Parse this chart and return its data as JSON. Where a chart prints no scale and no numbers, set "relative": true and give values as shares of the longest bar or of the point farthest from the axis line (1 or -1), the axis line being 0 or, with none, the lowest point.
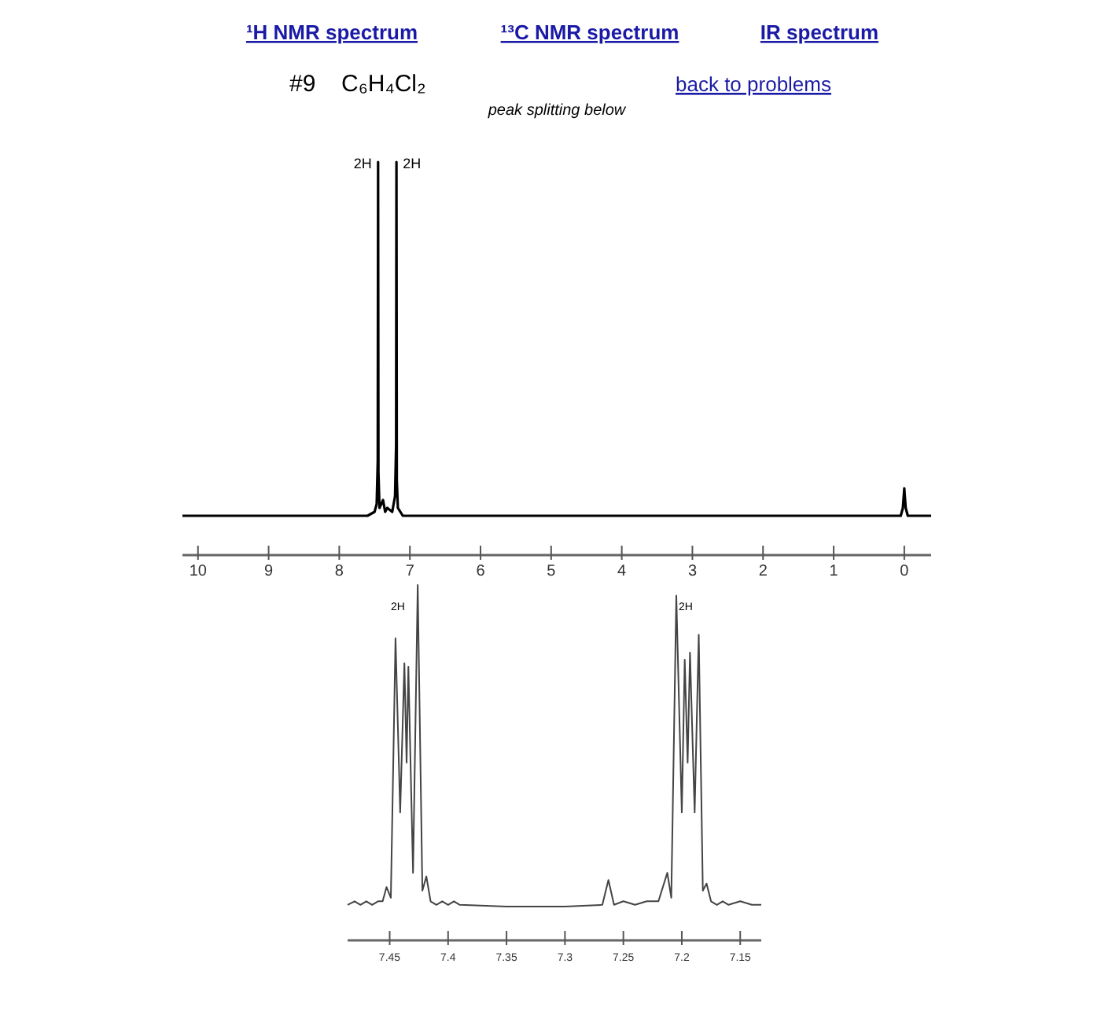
{
  "chart_data": [
    {
      "type": "line",
      "relative": true,
      "title": "#9",
      "subtitle": "C₆H₄Cl₂",
      "annotations": [
        "¹H NMR spectrum",
        "¹³C NMR spectrum",
        "IR spectrum",
        "back to problems",
        "peak splitting below",
        {
          "text": "2H",
          "x": 7.45,
          "y": 1
        },
        {
          "text": "2H",
          "x": 7.19,
          "y": 1
        }
      ],
      "xlim": [
        10.22,
        -0.38
      ],
      "xticks": [
        10,
        9,
        8,
        7,
        6,
        5,
        4,
        3,
        2,
        1,
        0
      ],
      "series": [
        {
          "color": "#000000",
          "x": [
            10.22,
            7.6,
            7.5,
            7.47,
            7.455,
            7.45,
            7.445,
            7.43,
            7.38,
            7.35,
            7.32,
            7.25,
            7.21,
            7.195,
            7.19,
            7.185,
            7.17,
            7.1,
            0.05,
            0.02,
            0,
            -0.02,
            -0.05,
            -0.38
          ],
          "values": [
            0.1,
            0.1,
            0.11,
            0.13,
            0.24,
            1,
            0.21,
            0.12,
            0.14,
            0.11,
            0.12,
            0.11,
            0.15,
            0.28,
            1,
            0.19,
            0.12,
            0.1,
            0.1,
            0.12,
            0.17,
            0.12,
            0.1,
            0.1
          ]
        }
      ]
    },
    {
      "type": "line",
      "relative": true,
      "annotations": [
        "2H",
        "2H"
      ],
      "xlim": [
        7.486,
        7.132
      ],
      "xticks": [
        7.45,
        7.4,
        7.35,
        7.3,
        7.25,
        7.2,
        7.15
      ],
      "series": [
        {
          "color": "#444444",
          "x": [
            7.486,
            7.48,
            7.475,
            7.47,
            7.465,
            7.46,
            7.456,
            7.4527,
            7.449,
            7.445,
            7.441,
            7.4374,
            7.4355,
            7.434,
            7.43,
            7.426,
            7.422,
            7.4186,
            7.415,
            7.41,
            7.405,
            7.4,
            7.395,
            7.39,
            7.35,
            7.3,
            7.268,
            7.2628,
            7.258,
            7.25,
            7.24,
            7.23,
            7.22,
            7.2124,
            7.209,
            7.2047,
            7.2,
            7.1975,
            7.195,
            7.193,
            7.189,
            7.1855,
            7.182,
            7.1788,
            7.175,
            7.17,
            7.165,
            7.16,
            7.15,
            7.14,
            7.132
          ],
          "values": [
            0.1,
            0.11,
            0.1,
            0.11,
            0.1,
            0.11,
            0.11,
            0.15,
            0.12,
            0.85,
            0.36,
            0.78,
            0.5,
            0.77,
            0.19,
            1,
            0.14,
            0.18,
            0.11,
            0.1,
            0.11,
            0.1,
            0.11,
            0.1,
            0.095,
            0.095,
            0.1,
            0.17,
            0.1,
            0.11,
            0.1,
            0.11,
            0.11,
            0.19,
            0.12,
            0.97,
            0.36,
            0.79,
            0.5,
            0.81,
            0.36,
            0.86,
            0.14,
            0.16,
            0.11,
            0.1,
            0.11,
            0.1,
            0.11,
            0.1,
            0.1
          ]
        }
      ]
    }
  ]
}
